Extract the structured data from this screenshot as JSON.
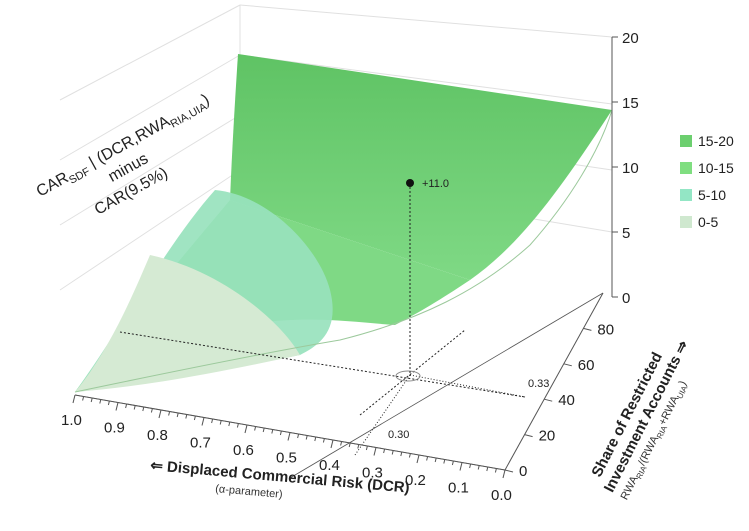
{
  "chart_data": {
    "type": "surface",
    "zlabel": {
      "line1": "CAR",
      "line1_sub": "SDF",
      "line1_rest": " | (DCR,RWA",
      "line1_sub2": "RIA,UIA",
      "line1_end": ")",
      "line2": "minus",
      "line3": "CAR(9.5%)"
    },
    "xlabel": {
      "main": "⇐ Displaced Commercial Risk (DCR)",
      "sub": "(α-parameter)"
    },
    "ylabel": {
      "line1": "Share of Restricted",
      "line2": "Investment Accounts ⇒",
      "formula_a": "RWA",
      "formula_a_sub": "RIA",
      "formula_b": "/(RWA",
      "formula_b_sub": "RIA",
      "formula_c": "+RWA",
      "formula_c_sub": "UIA",
      "formula_d": ")"
    },
    "x_ticks": [
      "1.0",
      "0.9",
      "0.8",
      "0.7",
      "0.6",
      "0.5",
      "0.4",
      "0.3",
      "0.2",
      "0.1",
      "0.0"
    ],
    "y_ticks": [
      "0",
      "20",
      "40",
      "60",
      "80"
    ],
    "z_ticks": [
      "0",
      "5",
      "10",
      "15",
      "20"
    ],
    "xlim": [
      1.0,
      0.0
    ],
    "ylim": [
      0,
      100
    ],
    "zlim": [
      0,
      20
    ],
    "legend": [
      {
        "label": "15-20",
        "color": "#6ccf6f"
      },
      {
        "label": "10-15",
        "color": "#7fde80"
      },
      {
        "label": "5-10",
        "color": "#93e6c5"
      },
      {
        "label": "0-5",
        "color": "#cfe8cf"
      }
    ],
    "annotations": {
      "point_label": "+11.0",
      "point_value": 11.0,
      "dcr_marker": "0.30",
      "share_marker": "0.33"
    },
    "legend_position": "right"
  }
}
